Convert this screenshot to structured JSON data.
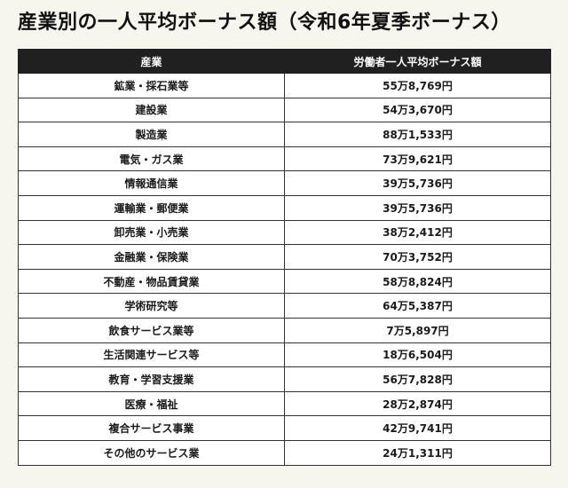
{
  "title": "産業別の一人平均ボーナス額（令和6年夏季ボーナス）",
  "table": {
    "headers": [
      "産業",
      "労働者一人平均ボーナス額"
    ],
    "rows": [
      {
        "industry": "鉱業・採石業等",
        "amount": "55万8,769円"
      },
      {
        "industry": "建設業",
        "amount": "54万3,670円"
      },
      {
        "industry": "製造業",
        "amount": "88万1,533円"
      },
      {
        "industry": "電気・ガス業",
        "amount": "73万9,621円"
      },
      {
        "industry": "情報通信業",
        "amount": "39万5,736円"
      },
      {
        "industry": "運輸業・郵便業",
        "amount": "39万5,736円"
      },
      {
        "industry": "卸売業・小売業",
        "amount": "38万2,412円"
      },
      {
        "industry": "金融業・保険業",
        "amount": "70万3,752円"
      },
      {
        "industry": "不動産・物品賃貸業",
        "amount": "58万8,824円"
      },
      {
        "industry": "学術研究等",
        "amount": "64万5,387円"
      },
      {
        "industry": "飲食サービス業等",
        "amount": "7万5,897円"
      },
      {
        "industry": "生活関連サービス等",
        "amount": "18万6,504円"
      },
      {
        "industry": "教育・学習支援業",
        "amount": "56万7,828円"
      },
      {
        "industry": "医療・福祉",
        "amount": "28万2,874円"
      },
      {
        "industry": "複合サービス事業",
        "amount": "42万9,741円"
      },
      {
        "industry": "その他のサービス業",
        "amount": "24万1,311円"
      }
    ]
  },
  "colors": {
    "background": "#f6f5ee",
    "header_background": "#202020",
    "header_text": "#ffffff",
    "cell_background": "#ffffff",
    "border": "#333333"
  }
}
